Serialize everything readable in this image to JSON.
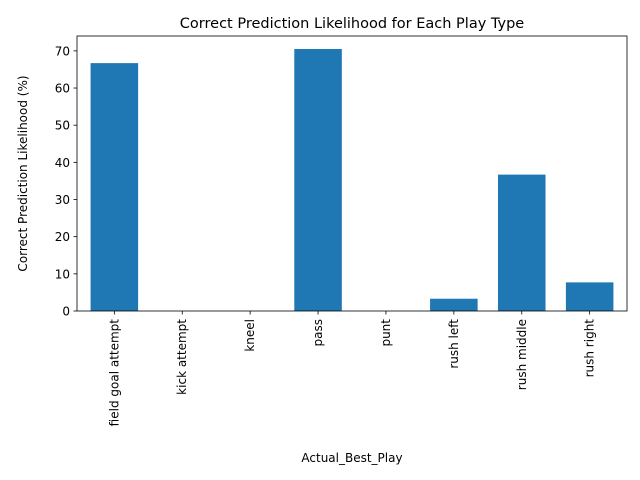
{
  "chart_data": {
    "type": "bar",
    "title": "Correct Prediction Likelihood for Each Play Type",
    "xlabel": "Actual_Best_Play",
    "ylabel": "Correct Prediction Likelihood (%)",
    "categories": [
      "field goal attempt",
      "kick attempt",
      "kneel",
      "pass",
      "punt",
      "rush left",
      "rush middle",
      "rush right"
    ],
    "values": [
      66.7,
      0,
      0,
      70.5,
      0,
      3.3,
      36.7,
      7.7
    ],
    "ylim": [
      0,
      74
    ],
    "yticks": [
      0,
      10,
      20,
      30,
      40,
      50,
      60,
      70
    ],
    "bar_color": "#1f77b4",
    "grid": false,
    "legend": "none"
  }
}
